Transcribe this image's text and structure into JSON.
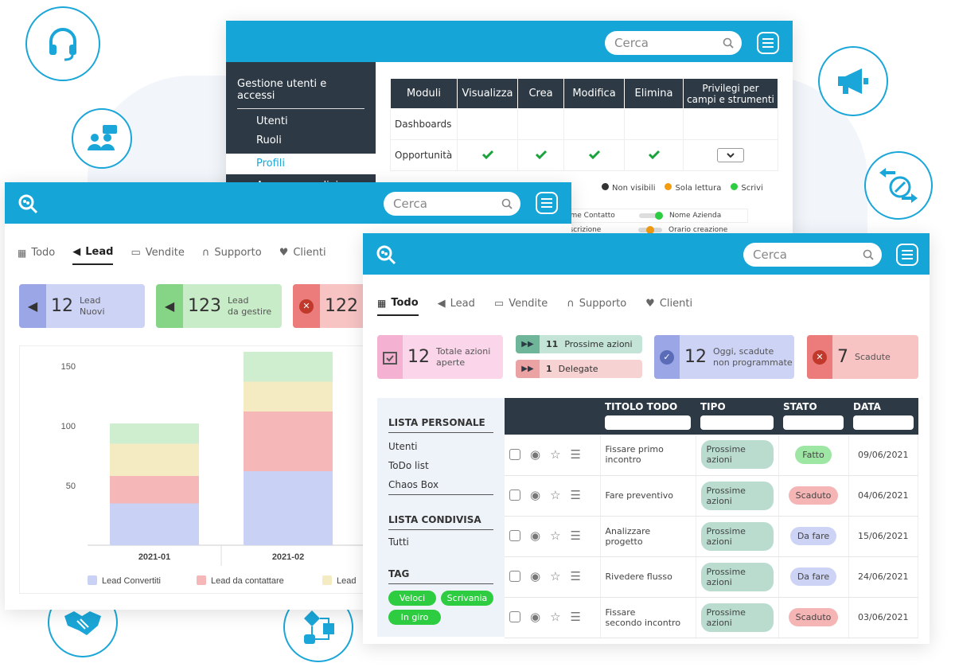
{
  "back_panel": {
    "search_placeholder": "Cerca",
    "sidebar": {
      "title": "Gestione utenti e accessi",
      "items": [
        "Utenti",
        "Ruoli",
        "Profili",
        "Accesso condiviso"
      ]
    },
    "table": {
      "headers": [
        "Moduli",
        "Visualizza",
        "Crea",
        "Modifica",
        "Elimina",
        "Privilegi per campi e strumenti"
      ],
      "rows": [
        {
          "module": "Dashboards",
          "checks": [
            false,
            false,
            false,
            false
          ]
        },
        {
          "module": "Opportunità",
          "checks": [
            true,
            true,
            true,
            true
          ]
        }
      ]
    },
    "legend": [
      "Non visibili",
      "Sola lettura",
      "Scrivi"
    ],
    "fields": [
      "ome Contatto",
      "Nome Azienda",
      "escrizione",
      "Orario creazione"
    ]
  },
  "lead_panel": {
    "search_placeholder": "Cerca",
    "tabs": [
      "Todo",
      "Lead",
      "Vendite",
      "Supporto",
      "Clienti"
    ],
    "cards": [
      {
        "num": "12",
        "l1": "Lead",
        "l2": "Nuovi"
      },
      {
        "num": "123",
        "l1": "Lead",
        "l2": "da gestire"
      },
      {
        "num": "122",
        "l1": "",
        "l2": ""
      }
    ],
    "legend": [
      "Lead Convertiti",
      "Lead da contattare",
      "Lead"
    ]
  },
  "chart_data": {
    "type": "bar",
    "stacked": true,
    "categories": [
      "2021-01",
      "2021-02"
    ],
    "ytick_labels": [
      "50",
      "100",
      "150"
    ],
    "ylim": [
      0,
      160
    ],
    "series": [
      {
        "name": "Lead Convertiti",
        "color": "#c9d2f4",
        "values": [
          35,
          62
        ]
      },
      {
        "name": "Lead da contattare",
        "color": "#f5b7b7",
        "values": [
          23,
          50
        ]
      },
      {
        "name": "Lead",
        "color": "#f5ebc3",
        "values": [
          27,
          25
        ]
      },
      {
        "color": "#cfedcf",
        "values": [
          17,
          25
        ]
      }
    ]
  },
  "todo_panel": {
    "search_placeholder": "Cerca",
    "tabs": [
      "Todo",
      "Lead",
      "Vendite",
      "Supporto",
      "Clienti"
    ],
    "summary": {
      "total": {
        "num": "12",
        "l1": "Totale azioni",
        "l2": "aperte"
      },
      "next": {
        "num": "11",
        "label": "Prossime azioni"
      },
      "delegated": {
        "num": "1",
        "label": "Delegate"
      },
      "today": {
        "num": "12",
        "l1": "Oggi, scadute",
        "l2": "non programmate"
      },
      "expired": {
        "num": "7",
        "label": "Scadute"
      }
    },
    "sidebar": {
      "personal_title": "LISTA PERSONALE",
      "personal_items": [
        "Utenti",
        "ToDo list",
        "Chaos Box"
      ],
      "shared_title": "LISTA CONDIVISA",
      "shared_items": [
        "Tutti"
      ],
      "tag_title": "TAG",
      "tags": [
        "Veloci",
        "Scrivania",
        "In giro"
      ]
    },
    "table": {
      "headers": [
        "TITOLO TODO",
        "TIPO",
        "STATO",
        "DATA"
      ],
      "rows": [
        {
          "l1": "Fissare primo",
          "l2": "incontro",
          "tipo": "Prossime azioni",
          "stato": "Fatto",
          "data": "09/06/2021"
        },
        {
          "l1": "Fare preventivo",
          "l2": "",
          "tipo": "Prossime azioni",
          "stato": "Scaduto",
          "data": "04/06/2021"
        },
        {
          "l1": "Analizzare",
          "l2": "progetto",
          "tipo": "Prossime azioni",
          "stato": "Da fare",
          "data": "15/06/2021"
        },
        {
          "l1": "Rivedere flusso",
          "l2": "",
          "tipo": "Prossime azioni",
          "stato": "Da fare",
          "data": "24/06/2021"
        },
        {
          "l1": "Fissare",
          "l2": "secondo incontro",
          "tipo": "Prossime azioni",
          "stato": "Scaduto",
          "data": "03/06/2021"
        }
      ]
    }
  },
  "colors": {
    "brand": "#16a5d7",
    "dark": "#2d3a45",
    "check": "#1aa33c"
  }
}
